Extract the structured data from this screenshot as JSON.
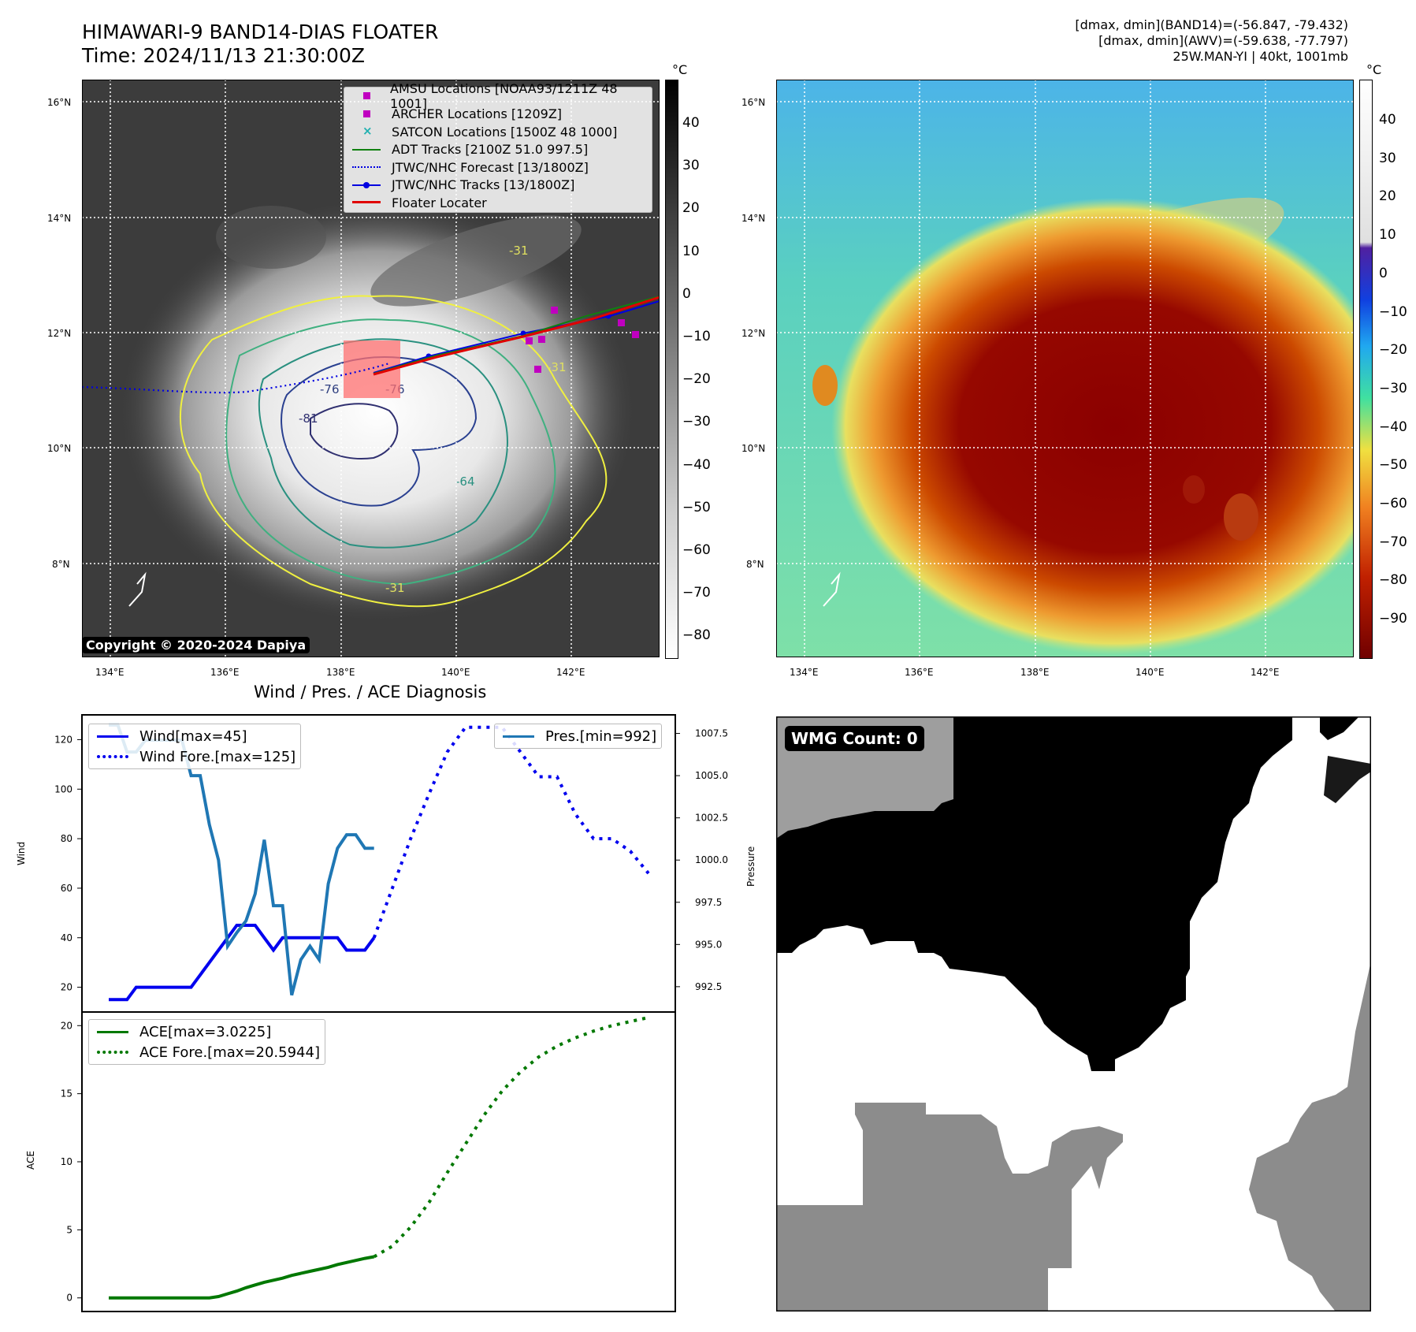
{
  "header": {
    "title_line1": "HIMAWARI-9 BAND14-DIAS FLOATER",
    "title_line2": "Time: 2024/11/13 21:30:00Z",
    "stat_band14": "[dmax, dmin](BAND14)=(-56.847, -79.432)",
    "stat_awv": "[dmax, dmin](AWV)=(-59.638, -77.797)",
    "stat_storm": "25W.MAN-YI | 40kt, 1001mb"
  },
  "map_left": {
    "lat_labels": [
      "16°N",
      "14°N",
      "12°N",
      "10°N",
      "8°N"
    ],
    "lon_labels": [
      "134°E",
      "136°E",
      "138°E",
      "140°E",
      "142°E"
    ],
    "contour_labels": [
      "-31",
      "-31",
      "-31",
      "-76",
      "-76",
      "-81",
      "-64"
    ],
    "copyright": "Copyright © 2020-2024 Dapiya",
    "legend": [
      {
        "label": "AMSU Locations [NOAA93/1211Z 48 1001]",
        "symbol": "square",
        "color": "#c000c0"
      },
      {
        "label": "ARCHER Locations [1209Z]",
        "symbol": "square",
        "color": "#c000c0"
      },
      {
        "label": "SATCON Locations [1500Z 48 1000]",
        "symbol": "x",
        "color": "#20b0b0"
      },
      {
        "label": "ADT Tracks [2100Z 51.0 997.5]",
        "symbol": "line",
        "color": "#108010"
      },
      {
        "label": "JTWC/NHC Forecast [13/1800Z]",
        "symbol": "dotted",
        "color": "#0000e0"
      },
      {
        "label": "JTWC/NHC Tracks [13/1800Z]",
        "symbol": "line-dot",
        "color": "#0000e0"
      },
      {
        "label": "Floater Locater",
        "symbol": "line",
        "color": "#e00000"
      }
    ],
    "colorbar_unit": "°C",
    "colorbar_ticks": [
      "40",
      "30",
      "20",
      "10",
      "0",
      "−10",
      "−20",
      "−30",
      "−40",
      "−50",
      "−60",
      "−70",
      "−80"
    ]
  },
  "map_right": {
    "lat_labels": [
      "16°N",
      "14°N",
      "12°N",
      "10°N",
      "8°N"
    ],
    "lon_labels": [
      "134°E",
      "136°E",
      "138°E",
      "140°E",
      "142°E"
    ],
    "colorbar_unit": "°C",
    "colorbar_ticks": [
      "40",
      "30",
      "20",
      "10",
      "0",
      "−10",
      "−20",
      "−30",
      "−40",
      "−50",
      "−60",
      "−70",
      "−80",
      "−90"
    ]
  },
  "wmg": {
    "label": "WMG Count: 0"
  },
  "colors": {
    "wind": "#0000ee",
    "pressure": "#1f77b4",
    "ace": "#007800"
  },
  "chart_data": [
    {
      "type": "line",
      "title": "Wind / Pres. / ACE Diagnosis",
      "xlabel": "",
      "ylabel": "Wind",
      "ylim": [
        10,
        130
      ],
      "yticks": [
        20,
        40,
        60,
        80,
        100,
        120
      ],
      "y2label": "Pressure",
      "y2lim": [
        991.0,
        1008.6
      ],
      "y2ticks": [
        "992.5",
        "995.0",
        "997.5",
        "1000.0",
        "1002.5",
        "1005.0",
        "1007.5"
      ],
      "legend_left": [
        "Wind[max=45]",
        "Wind Fore.[max=125]"
      ],
      "legend_right": [
        "Pres.[min=992]"
      ],
      "series": [
        {
          "name": "Wind[max=45]",
          "axis": "left",
          "style": "solid",
          "color": "#0000ee",
          "x": [
            0,
            1,
            2,
            3,
            4,
            5,
            6,
            7,
            8,
            9,
            10,
            11,
            12,
            13,
            14,
            15,
            16,
            17,
            18,
            19,
            20,
            21,
            22,
            23,
            24,
            25,
            26,
            27,
            28,
            29
          ],
          "values": [
            15,
            15,
            15,
            20,
            20,
            20,
            20,
            20,
            20,
            20,
            25,
            30,
            35,
            40,
            45,
            45,
            45,
            40,
            35,
            40,
            40,
            40,
            40,
            40,
            40,
            40,
            35,
            35,
            35,
            40
          ]
        },
        {
          "name": "Wind Fore.[max=125]",
          "axis": "left",
          "style": "dotted",
          "color": "#0000ee",
          "x": [
            29,
            31,
            33,
            35,
            37,
            39,
            41,
            43,
            45,
            47,
            49,
            51,
            53,
            55,
            57,
            59
          ],
          "values": [
            40,
            60,
            80,
            98,
            115,
            125,
            125,
            125,
            115,
            105,
            105,
            90,
            80,
            80,
            75,
            66
          ]
        },
        {
          "name": "Pres.[min=992]",
          "axis": "right",
          "style": "solid",
          "color": "#1f77b4",
          "x": [
            0,
            1,
            2,
            3,
            4,
            5,
            6,
            7,
            8,
            9,
            10,
            11,
            12,
            13,
            14,
            15,
            16,
            17,
            18,
            19,
            20,
            21,
            22,
            23,
            24,
            25,
            26,
            27,
            28,
            29
          ],
          "values": [
            1008,
            1008,
            1006.4,
            1006.4,
            1007.1,
            1007.1,
            1007.1,
            1007.1,
            1007.1,
            1005,
            1005,
            1002.1,
            1000,
            994.9,
            995.7,
            996.4,
            998,
            1001.2,
            997.3,
            997.3,
            992,
            994.1,
            994.9,
            994.1,
            998.6,
            1000.7,
            1001.5,
            1001.5,
            1000.7,
            1000.7
          ]
        }
      ]
    },
    {
      "type": "line",
      "ylabel": "ACE",
      "ylim": [
        -1,
        21
      ],
      "yticks": [
        0,
        5,
        10,
        15,
        20
      ],
      "legend": [
        "ACE[max=3.0225]",
        "ACE Fore.[max=20.5944]"
      ],
      "series": [
        {
          "name": "ACE[max=3.0225]",
          "style": "solid",
          "color": "#007800",
          "x": [
            0,
            2,
            4,
            6,
            8,
            10,
            11,
            12,
            13,
            14,
            15,
            16,
            17,
            18,
            19,
            20,
            21,
            22,
            23,
            24,
            25,
            26,
            27,
            28,
            29
          ],
          "values": [
            0,
            0,
            0,
            0,
            0,
            0,
            0,
            0.1,
            0.3,
            0.5,
            0.75,
            0.95,
            1.15,
            1.3,
            1.45,
            1.65,
            1.8,
            1.95,
            2.1,
            2.25,
            2.45,
            2.6,
            2.75,
            2.9,
            3.0225
          ]
        },
        {
          "name": "ACE Fore.[max=20.5944]",
          "style": "dotted",
          "color": "#007800",
          "x": [
            29,
            31,
            33,
            35,
            37,
            39,
            41,
            43,
            45,
            47,
            49,
            51,
            53,
            55,
            57,
            59
          ],
          "values": [
            3.0225,
            3.8,
            5.2,
            7.0,
            9.2,
            11.3,
            13.4,
            15.2,
            16.6,
            17.7,
            18.5,
            19.1,
            19.6,
            20.0,
            20.3,
            20.5944
          ]
        }
      ]
    }
  ]
}
